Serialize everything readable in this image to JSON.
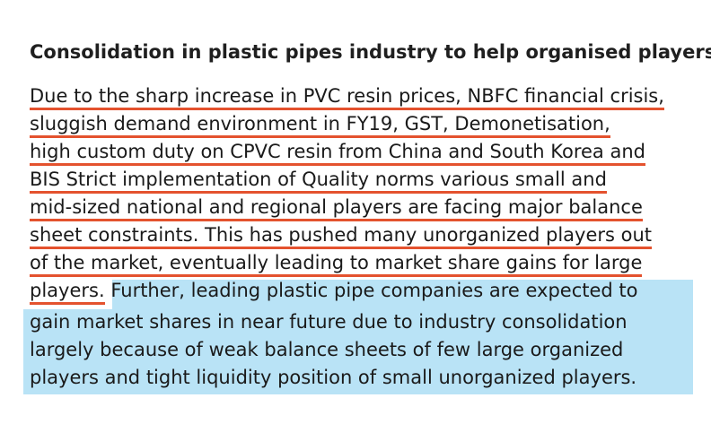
{
  "heading": "Consolidation in plastic pipes industry to help organised players:",
  "lines": [
    "Due to the sharp increase in PVC resin prices, NBFC financial crisis,",
    "sluggish demand environment in FY19,  GST, Demonetisation,",
    "high custom duty on CPVC resin from China and South Korea and",
    "BIS Strict implementation of Quality norms various small and",
    "mid-sized national and regional players are facing  major balance",
    "sheet constraints. This has pushed many unorganized players out",
    "of the market, eventually leading to market share gains for large",
    "players."
  ],
  "highlighted_lines": [
    "Further, leading plastic pipe companies are expected to",
    "gain market shares in near future due to industry consolidation",
    "largely because of weak balance sheets of few large organized",
    "players and tight liquidity position of small unorganized players."
  ],
  "colors": {
    "underline": "#e4522e",
    "highlight": "#b9e3f6"
  }
}
